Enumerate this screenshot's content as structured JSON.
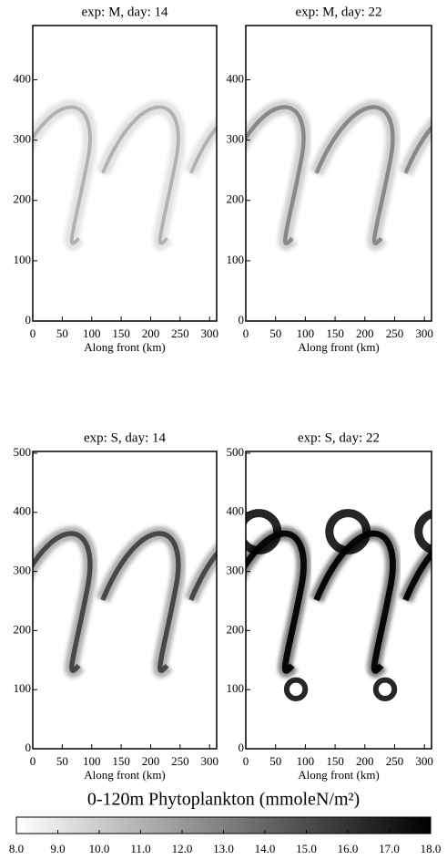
{
  "chart_data": [
    {
      "type": "heatmap",
      "title": "exp: M, day: 14",
      "x_label": "Along front (km)",
      "xlim": [
        0,
        312
      ],
      "xticks": [
        0,
        50,
        100,
        150,
        200,
        250,
        300
      ],
      "ylim": [
        0,
        490
      ],
      "yticks": [
        0,
        100,
        200,
        300,
        400
      ]
    },
    {
      "type": "heatmap",
      "title": "exp: M, day: 22",
      "x_label": "Along front (km)",
      "xlim": [
        0,
        312
      ],
      "xticks": [
        0,
        50,
        100,
        150,
        200,
        250,
        300
      ],
      "ylim": [
        0,
        490
      ],
      "yticks": [
        0,
        100,
        200,
        300,
        400
      ]
    },
    {
      "type": "heatmap",
      "title": "exp: S, day: 14",
      "x_label": "Along front (km)",
      "xlim": [
        0,
        312
      ],
      "xticks": [
        0,
        50,
        100,
        150,
        200,
        250,
        300
      ],
      "ylim": [
        0,
        503
      ],
      "yticks": [
        0,
        100,
        200,
        300,
        400,
        500
      ]
    },
    {
      "type": "heatmap",
      "title": "exp: S, day: 22",
      "x_label": "Along front (km)",
      "xlim": [
        0,
        312
      ],
      "xticks": [
        0,
        50,
        100,
        150,
        200,
        250,
        300
      ],
      "ylim": [
        0,
        503
      ],
      "yticks": [
        0,
        100,
        200,
        300,
        400,
        500
      ]
    },
    {
      "type": "colorbar",
      "title": "0-120m Phytoplankton (mmoleN/m²)",
      "vlim": [
        8,
        18
      ],
      "colors": [
        "#ffffff",
        "#000000"
      ],
      "ticks": [
        {
          "value": 8,
          "label": "8.0"
        },
        {
          "value": 9,
          "label": "9.0"
        },
        {
          "value": 10,
          "label": "10.0"
        },
        {
          "value": 11,
          "label": "11.0"
        },
        {
          "value": 12,
          "label": "12.0"
        },
        {
          "value": 13,
          "label": "13.0"
        },
        {
          "value": 14,
          "label": "14.0"
        },
        {
          "value": 15,
          "label": "15.0"
        },
        {
          "value": 16,
          "label": "16.0"
        },
        {
          "value": 17,
          "label": "17.0"
        },
        {
          "value": 18,
          "label": "18.0"
        }
      ]
    }
  ]
}
